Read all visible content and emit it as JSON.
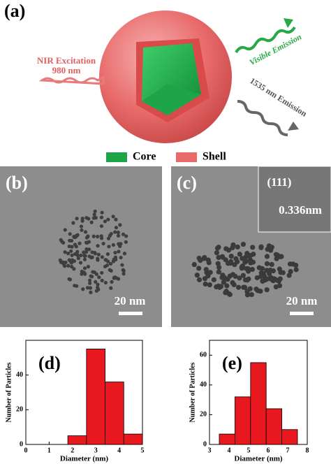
{
  "panel_a": {
    "label": "(a)",
    "excitation": "NIR Excitation",
    "excitation_wavelength": "980 nm",
    "visible": "Visible Emission",
    "infrared": "1535 nm Emission",
    "legend": [
      "Core",
      "Shell"
    ]
  },
  "panel_b": {
    "label": "(b)",
    "scale_bar": "20 nm"
  },
  "panel_c": {
    "label": "(c)",
    "scale_bar": "20 nm",
    "inset_plane": "(111)",
    "inset_spacing": "0.336nm"
  },
  "chart_data": [
    {
      "type": "histogram",
      "label": "(d)",
      "x_label": "Diameter (nm)",
      "y_label": "Number of Particles",
      "bins": [
        1.8,
        2.6,
        3.4,
        4.2,
        5.0
      ],
      "values": [
        5,
        55,
        36,
        6
      ],
      "color": "#e8191e",
      "xlim": [
        0,
        5
      ],
      "xticks": [
        0,
        1,
        2,
        3,
        4,
        5
      ],
      "ylim": [
        0,
        60
      ],
      "yticks": [
        0,
        20,
        40
      ]
    },
    {
      "type": "histogram",
      "label": "(e)",
      "x_label": "Diameter (nm)",
      "y_label": "Number of Particles",
      "bins": [
        3.5,
        4.3,
        5.1,
        5.9,
        6.7,
        7.5
      ],
      "values": [
        7,
        32,
        55,
        24,
        10
      ],
      "color": "#e8191e",
      "xlim": [
        3,
        8
      ],
      "xticks": [
        3,
        4,
        5,
        6,
        7,
        8
      ],
      "ylim": [
        0,
        70
      ],
      "yticks": [
        0,
        20,
        40,
        60
      ]
    }
  ]
}
